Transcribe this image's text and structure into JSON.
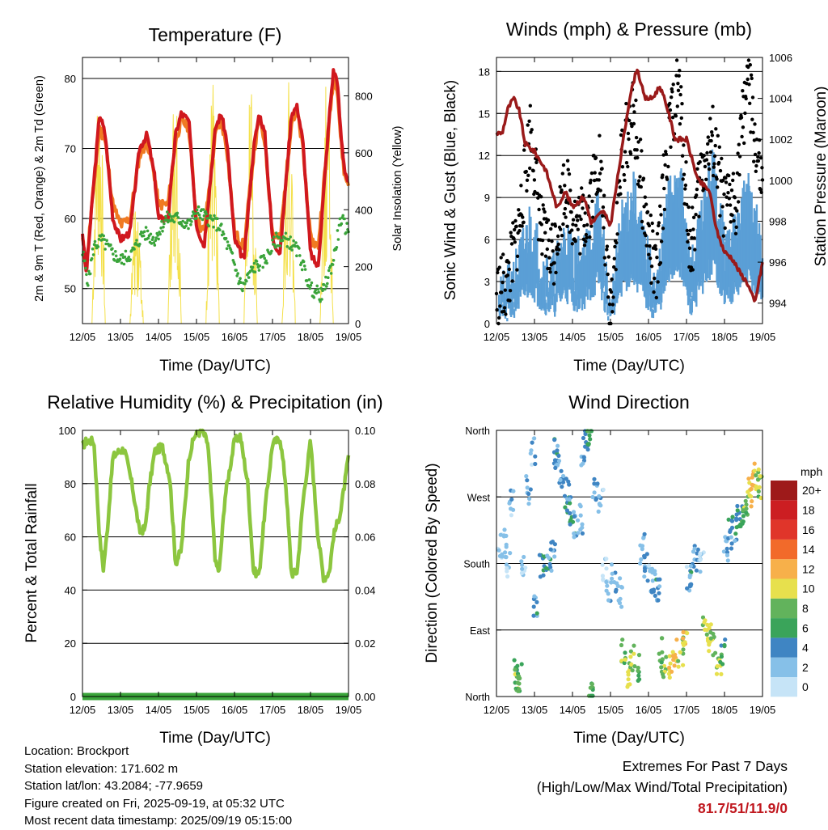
{
  "x_ticks": [
    "12/05",
    "13/05",
    "14/05",
    "15/05",
    "16/05",
    "17/05",
    "18/05",
    "19/05"
  ],
  "panels": {
    "temperature": {
      "title": "Temperature (F)",
      "ylabel_left": "2m & 9m T (Red, Orange) & 2m Td (Green)",
      "ylabel_right": "Solar Insolation (Yellow)",
      "xlabel": "Time (Day/UTC)",
      "left_ticks": [
        "50",
        "60",
        "70",
        "80"
      ],
      "right_ticks": [
        "0",
        "200",
        "400",
        "600",
        "800"
      ]
    },
    "winds": {
      "title": "Winds (mph) & Pressure (mb)",
      "ylabel_left": "Sonic Wind & Gust (Blue, Black)",
      "ylabel_right": "Station Pressure (Maroon)",
      "xlabel": "Time (Day/UTC)",
      "left_ticks": [
        "0",
        "3",
        "6",
        "9",
        "12",
        "15",
        "18"
      ],
      "right_ticks": [
        "994",
        "996",
        "998",
        "1000",
        "1002",
        "1004",
        "1006"
      ]
    },
    "humidity": {
      "title": "Relative Humidity (%) & Precipitation (in)",
      "ylabel_left": "Percent & Total Rainfall",
      "xlabel": "Time (Day/UTC)",
      "left_ticks": [
        "0",
        "20",
        "40",
        "60",
        "80",
        "100"
      ],
      "right_ticks": [
        "0.00",
        "0.02",
        "0.04",
        "0.06",
        "0.08",
        "0.10"
      ]
    },
    "direction": {
      "title": "Wind Direction",
      "ylabel_left": "Direction (Colored By Speed)",
      "xlabel": "Time (Day/UTC)",
      "left_ticks": [
        "North",
        "East",
        "South",
        "West",
        "North"
      ],
      "colorbar_title": "mph",
      "colorbar_labels": [
        "0",
        "2",
        "4",
        "6",
        "8",
        "10",
        "12",
        "14",
        "16",
        "18",
        "20+"
      ]
    }
  },
  "colors": {
    "temp_2m": "#d0181e",
    "temp_9m": "#f07a22",
    "dewpoint": "#3aa43a",
    "insolation": "#f4e04a",
    "wind": "#5b9fd6",
    "gust": "#000000",
    "pressure": "#9a1a1a",
    "rh": "#8cc63f",
    "precip": "#3aa43a",
    "colorbar": [
      "#c6e4f7",
      "#86c0e8",
      "#3f85c3",
      "#3aa45a",
      "#62b35c",
      "#e7e04d",
      "#f7b04a",
      "#f26a2a",
      "#e0352a",
      "#cc1e22",
      "#9e1a1a"
    ]
  },
  "info": {
    "location": "Location: Brockport",
    "elevation": "Station elevation: 171.602 m",
    "latlon": "Station lat/lon: 43.2084; -77.9659",
    "created": "Figure created on Fri, 2025-09-19, at 05:32 UTC",
    "recent": "Most recent data timestamp: 2025/09/19 05:15:00"
  },
  "extremes": {
    "title": "Extremes For Past 7 Days",
    "subtitle": "(High/Low/Max Wind/Total Precipitation)",
    "value": "81.7/51/11.9/0"
  },
  "chart_data": [
    {
      "type": "line",
      "title": "Temperature (F)",
      "xlabel": "Time (Day/UTC)",
      "ylabel": "2m & 9m T (Red, Orange) & 2m Td (Green)",
      "y2label": "Solar Insolation (Yellow)",
      "x_days": [
        0,
        7
      ],
      "ylim": [
        45,
        83
      ],
      "y2lim": [
        0,
        935
      ],
      "series": [
        {
          "name": "2m T (Red)",
          "x": [
            0,
            0.1,
            0.25,
            0.45,
            0.6,
            0.8,
            1.0,
            1.25,
            1.5,
            1.7,
            1.9,
            2.0,
            2.25,
            2.45,
            2.6,
            2.8,
            3.0,
            3.2,
            3.5,
            3.65,
            3.8,
            4.0,
            4.25,
            4.5,
            4.65,
            4.8,
            5.0,
            5.2,
            5.5,
            5.65,
            5.8,
            6.0,
            6.2,
            6.5,
            6.6,
            6.7,
            6.8,
            6.9,
            7.0
          ],
          "y": [
            58,
            52,
            62,
            75,
            72,
            60,
            57,
            58,
            70,
            72,
            66,
            60,
            60,
            72,
            75,
            74,
            59,
            56,
            73,
            75,
            71,
            57,
            54,
            70,
            75,
            72,
            57,
            55,
            75,
            76,
            71,
            55,
            53,
            75,
            81,
            80,
            72,
            67,
            65
          ]
        },
        {
          "name": "9m T (Orange)",
          "x": [
            0,
            0.1,
            0.25,
            0.45,
            0.6,
            0.8,
            1.0,
            1.25,
            1.5,
            1.7,
            1.9,
            2.0,
            2.25,
            2.45,
            2.6,
            2.8,
            3.0,
            3.2,
            3.5,
            3.65,
            3.8,
            4.0,
            4.25,
            4.5,
            4.65,
            4.8,
            5.0,
            5.2,
            5.5,
            5.65,
            5.8,
            6.0,
            6.2,
            6.5,
            6.6,
            6.7,
            6.8,
            6.9,
            7.0
          ],
          "y": [
            57,
            53,
            62,
            73,
            71,
            62,
            59,
            60,
            69,
            71,
            66,
            62,
            62,
            71,
            74,
            73,
            60,
            58,
            72,
            74,
            70,
            58,
            56,
            69,
            74,
            71,
            58,
            57,
            74,
            75,
            70,
            57,
            56,
            74,
            80,
            79,
            71,
            66,
            65
          ]
        },
        {
          "name": "2m Td (Green)",
          "x": [
            0,
            0.15,
            0.3,
            0.5,
            0.8,
            1.0,
            1.3,
            1.6,
            1.9,
            2.2,
            2.5,
            2.8,
            3.0,
            3.3,
            3.6,
            3.9,
            4.2,
            4.5,
            4.8,
            5.1,
            5.4,
            5.7,
            6.0,
            6.3,
            6.6,
            6.8,
            7.0
          ],
          "y": [
            55,
            51,
            56,
            57,
            55,
            54,
            55,
            58,
            57,
            60,
            60,
            59,
            61,
            60,
            59,
            55,
            50,
            53,
            54,
            57,
            57,
            55,
            50,
            49,
            54,
            60,
            58
          ]
        },
        {
          "name": "Solar Insolation (Yellow)",
          "x": [
            0.25,
            0.45,
            0.6,
            1.25,
            1.45,
            1.6,
            2.25,
            2.45,
            2.6,
            3.25,
            3.45,
            3.6,
            4.25,
            4.45,
            4.6,
            5.25,
            5.45,
            5.6,
            6.25,
            6.45,
            6.6
          ],
          "y": [
            0,
            930,
            0,
            0,
            480,
            0,
            0,
            860,
            0,
            0,
            860,
            0,
            0,
            830,
            0,
            0,
            850,
            0,
            0,
            860,
            0
          ]
        }
      ]
    },
    {
      "type": "line",
      "title": "Winds (mph) & Pressure (mb)",
      "xlabel": "Time (Day/UTC)",
      "ylabel": "Sonic Wind & Gust (Blue, Black)",
      "y2label": "Station Pressure (Maroon)",
      "x_days": [
        0,
        7
      ],
      "ylim": [
        0,
        19
      ],
      "y2lim": [
        993,
        1006
      ],
      "series": [
        {
          "name": "Station Pressure (Maroon)",
          "x": [
            0,
            0.15,
            0.3,
            0.45,
            0.6,
            0.75,
            1.0,
            1.3,
            1.6,
            1.8,
            2.0,
            2.3,
            2.5,
            2.8,
            3.0,
            3.3,
            3.5,
            3.7,
            3.9,
            4.1,
            4.3,
            4.5,
            4.7,
            5.0,
            5.3,
            5.6,
            5.8,
            6.0,
            6.2,
            6.4,
            6.6,
            6.8,
            7.0
          ],
          "y": [
            1002.3,
            1002.3,
            1003.5,
            1004,
            1003.4,
            1001.8,
            1001.4,
            1000.5,
            998.6,
            999.5,
            998.7,
            999.2,
            997.9,
            998.5,
            997.8,
            1001.5,
            1004,
            1005.5,
            1004,
            1004,
            1004.6,
            1003.5,
            1002,
            1002,
            1000,
            999.5,
            997.5,
            996.5,
            996.2,
            995.5,
            995,
            994,
            996
          ]
        },
        {
          "name": "Sonic Wind (Blue)",
          "x": [
            0,
            0.3,
            0.6,
            0.9,
            1.2,
            1.5,
            1.8,
            2.1,
            2.4,
            2.7,
            3.0,
            3.3,
            3.6,
            3.9,
            4.2,
            4.5,
            4.8,
            5.1,
            5.4,
            5.7,
            6.0,
            6.3,
            6.6,
            6.8,
            7.0
          ],
          "y": [
            1,
            2,
            4,
            7,
            4,
            3,
            6,
            4,
            5,
            8,
            0,
            7,
            9,
            5,
            2,
            8,
            11,
            3,
            7,
            11,
            5,
            6,
            9,
            7,
            5
          ]
        },
        {
          "name": "Gust (Black)",
          "x": [
            0,
            0.3,
            0.6,
            0.9,
            1.2,
            1.5,
            1.8,
            2.1,
            2.4,
            2.7,
            3.0,
            3.3,
            3.6,
            3.9,
            4.2,
            4.5,
            4.8,
            5.1,
            5.4,
            5.7,
            6.0,
            6.3,
            6.6,
            6.8,
            7.0
          ],
          "y": [
            2,
            3,
            7,
            14,
            6,
            5,
            10,
            7,
            8,
            12,
            1,
            12,
            15,
            8,
            3,
            13,
            17,
            5,
            11,
            13,
            8,
            9,
            18,
            13,
            9
          ]
        }
      ]
    },
    {
      "type": "line",
      "title": "Relative Humidity (%) & Precipitation (in)",
      "xlabel": "Time (Day/UTC)",
      "ylabel": "Percent & Total Rainfall",
      "x_days": [
        0,
        7
      ],
      "ylim": [
        0,
        100
      ],
      "y2lim": [
        0,
        0.1
      ],
      "series": [
        {
          "name": "Relative Humidity",
          "x": [
            0,
            0.1,
            0.3,
            0.45,
            0.55,
            0.65,
            0.8,
            0.95,
            1.1,
            1.3,
            1.5,
            1.65,
            1.75,
            1.9,
            2.1,
            2.3,
            2.45,
            2.6,
            2.8,
            2.95,
            3.15,
            3.3,
            3.5,
            3.6,
            3.75,
            4.0,
            4.15,
            4.35,
            4.5,
            4.65,
            4.8,
            5.0,
            5.2,
            5.35,
            5.5,
            5.65,
            5.8,
            6.0,
            6.2,
            6.35,
            6.5,
            6.6,
            6.8,
            7.0
          ],
          "y": [
            94,
            96,
            96,
            60,
            48,
            62,
            90,
            92,
            93,
            80,
            62,
            63,
            78,
            92,
            94,
            82,
            50,
            55,
            90,
            98,
            100,
            95,
            50,
            47,
            75,
            96,
            98,
            80,
            47,
            46,
            70,
            95,
            97,
            80,
            46,
            47,
            73,
            96,
            60,
            44,
            47,
            60,
            70,
            90
          ]
        },
        {
          "name": "Total Rainfall",
          "x": [
            0,
            7
          ],
          "y": [
            0,
            0
          ]
        }
      ]
    },
    {
      "type": "scatter",
      "title": "Wind Direction",
      "xlabel": "Time (Day/UTC)",
      "ylabel": "Direction (Colored By Speed)",
      "x_days": [
        0,
        7
      ],
      "ylim": [
        0,
        360
      ],
      "y_labels": {
        "0": "North",
        "90": "East",
        "180": "South",
        "270": "West",
        "360": "North"
      },
      "colorbar": {
        "title": "mph",
        "levels": [
          "0",
          "2",
          "4",
          "6",
          "8",
          "10",
          "12",
          "14",
          "16",
          "18",
          "20+"
        ]
      },
      "series": [
        {
          "name": "direction",
          "x": [
            0.1,
            0.2,
            0.3,
            0.4,
            0.5,
            0.55,
            0.6,
            0.7,
            0.85,
            0.95,
            1.0,
            1.2,
            1.35,
            1.5,
            1.55,
            1.6,
            1.7,
            1.85,
            1.9,
            2.0,
            2.1,
            2.2,
            2.3,
            2.4,
            2.45,
            2.5,
            2.6,
            2.75,
            2.85,
            2.95,
            3.1,
            3.25,
            3.35,
            3.45,
            3.55,
            3.7,
            3.85,
            3.95,
            4.05,
            4.15,
            4.25,
            4.35,
            4.4,
            4.6,
            4.7,
            4.85,
            4.95,
            5.05,
            5.15,
            5.25,
            5.4,
            5.5,
            5.6,
            5.7,
            5.85,
            5.95,
            6.05,
            6.15,
            6.25,
            6.35,
            6.45,
            6.55,
            6.65,
            6.75,
            6.85,
            6.95
          ],
          "y": [
            200,
            210,
            180,
            260,
            30,
            20,
            25,
            180,
            280,
            330,
            120,
            175,
            180,
            190,
            330,
            320,
            300,
            275,
            250,
            240,
            235,
            240,
            330,
            350,
            355,
            0,
            280,
            260,
            170,
            140,
            160,
            140,
            60,
            30,
            50,
            40,
            200,
            180,
            160,
            150,
            150,
            60,
            40,
            40,
            60,
            60,
            70,
            160,
            170,
            190,
            180,
            90,
            80,
            70,
            50,
            60,
            200,
            220,
            230,
            240,
            250,
            260,
            275,
            300,
            290,
            280
          ],
          "speed": [
            1,
            2,
            1,
            2,
            6,
            8,
            7,
            1,
            3,
            2,
            4,
            5,
            4,
            3,
            4,
            3,
            4,
            5,
            4,
            5,
            3,
            2,
            3,
            4,
            6,
            7,
            3,
            2,
            1,
            2,
            3,
            2,
            8,
            10,
            9,
            7,
            2,
            3,
            2,
            4,
            4,
            8,
            9,
            10,
            11,
            9,
            10,
            2,
            4,
            3,
            2,
            9,
            10,
            8,
            9,
            6,
            3,
            4,
            4,
            5,
            6,
            8,
            10,
            12,
            9,
            8
          ]
        }
      ]
    }
  ]
}
